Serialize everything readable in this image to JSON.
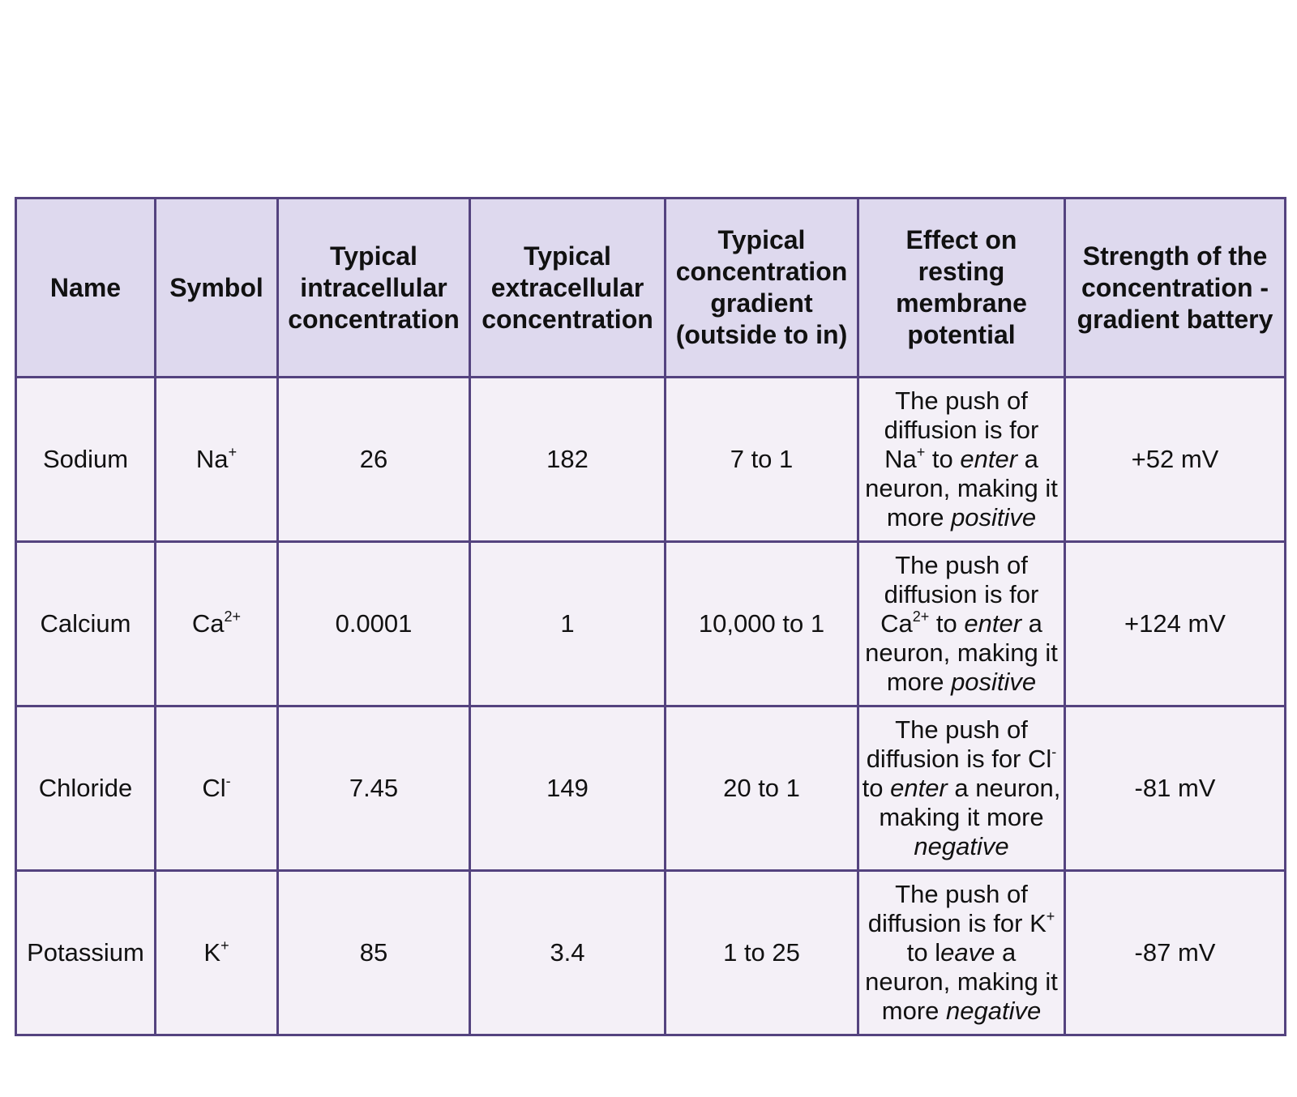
{
  "table": {
    "headers": [
      "Name",
      "Symbol",
      "Typical intracellular concentration",
      "Typical extracellular concentration",
      "Typical concentration gradient (outside to in)",
      "Effect on resting membrane potential",
      "Strength of the concentration -gradient battery"
    ],
    "rows": [
      {
        "name": "Sodium",
        "symbol_base": "Na",
        "symbol_charge": "+",
        "intracellular": "26",
        "extracellular": "182",
        "gradient": "7 to 1",
        "effect": {
          "line1": "The push of diffusion is for",
          "ion_base": "Na",
          "ion_charge": "+",
          "to": " to ",
          "verb": "enter",
          "mid": " a neuron, making it more ",
          "result": "positive"
        },
        "battery": "+52 mV"
      },
      {
        "name": "Calcium",
        "symbol_base": "Ca",
        "symbol_charge": "2+",
        "intracellular": "0.0001",
        "extracellular": "1",
        "gradient": "10,000 to 1",
        "effect": {
          "line1": "The push of diffusion is for",
          "ion_base": "Ca",
          "ion_charge": "2+",
          "to": " to ",
          "verb": "enter",
          "mid": " a neuron, making it more ",
          "result": "positive"
        },
        "battery": "+124 mV"
      },
      {
        "name": "Chloride",
        "symbol_base": "Cl",
        "symbol_charge": "-",
        "intracellular": "7.45",
        "extracellular": "149",
        "gradient": "20 to 1",
        "effect": {
          "line1": "The push of diffusion is for",
          "ion_base": "Cl",
          "ion_charge": "-",
          "to": " to ",
          "verb": "enter",
          "mid": " a neuron, making it more ",
          "result": "negative"
        },
        "battery": "-81 mV"
      },
      {
        "name": "Potassium",
        "symbol_base": "K",
        "symbol_charge": "+",
        "intracellular": "85",
        "extracellular": "3.4",
        "gradient": "1 to 25",
        "effect": {
          "line1": "The push of diffusion is for",
          "ion_base": "K",
          "ion_charge": "+",
          "to": " to l",
          "verb": "eave",
          "mid": " a neuron, making it more ",
          "result": "negative"
        },
        "battery": "-87 mV"
      }
    ]
  }
}
